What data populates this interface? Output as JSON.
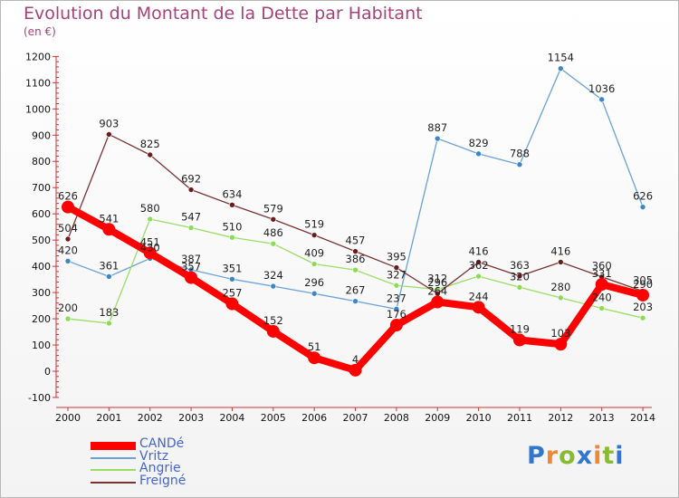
{
  "chart_data": {
    "type": "line",
    "title": "Evolution du Montant de la Dette par Habitant",
    "subtitle": "(en €)",
    "xlabel": "",
    "ylabel": "",
    "categories": [
      "2000",
      "2001",
      "2002",
      "2003",
      "2004",
      "2005",
      "2006",
      "2007",
      "2008",
      "2009",
      "2010",
      "2011",
      "2012",
      "2013",
      "2014"
    ],
    "ylim": [
      -100,
      1200
    ],
    "yticks": [
      -100,
      0,
      100,
      200,
      300,
      400,
      500,
      600,
      700,
      800,
      900,
      1000,
      1100,
      1200
    ],
    "grid": false,
    "legend_position": "bottom-left",
    "series": [
      {
        "name": "CANDé",
        "color": "#ff0000",
        "point_color": "#ff0000",
        "values": [
          626,
          541,
          451,
          357,
          257,
          152,
          51,
          4,
          176,
          264,
          244,
          119,
          103,
          331,
          290
        ]
      },
      {
        "name": "Vritz",
        "color": "#6aa1d8",
        "point_color": "#3d86c6",
        "values": [
          420,
          361,
          430,
          387,
          351,
          324,
          296,
          267,
          237,
          887,
          829,
          788,
          1154,
          1036,
          626
        ]
      },
      {
        "name": "Angrie",
        "color": "#99dd66",
        "point_color": "#88dd55",
        "values": [
          200,
          183,
          580,
          547,
          510,
          486,
          409,
          386,
          327,
          312,
          362,
          320,
          280,
          240,
          203
        ]
      },
      {
        "name": "Freigné",
        "color": "#7a3333",
        "point_color": "#6b1c1c",
        "values": [
          504,
          903,
          825,
          692,
          634,
          579,
          519,
          457,
          395,
          296,
          416,
          363,
          416,
          360,
          305
        ]
      }
    ]
  },
  "brand": {
    "letters": [
      "P",
      "r",
      "o",
      "x",
      "i",
      "t",
      "i"
    ],
    "colors": [
      "#3377cc",
      "#ee8833",
      "#88bb33",
      "#3377cc",
      "#ee8833",
      "#88bb33",
      "#3377cc"
    ]
  }
}
